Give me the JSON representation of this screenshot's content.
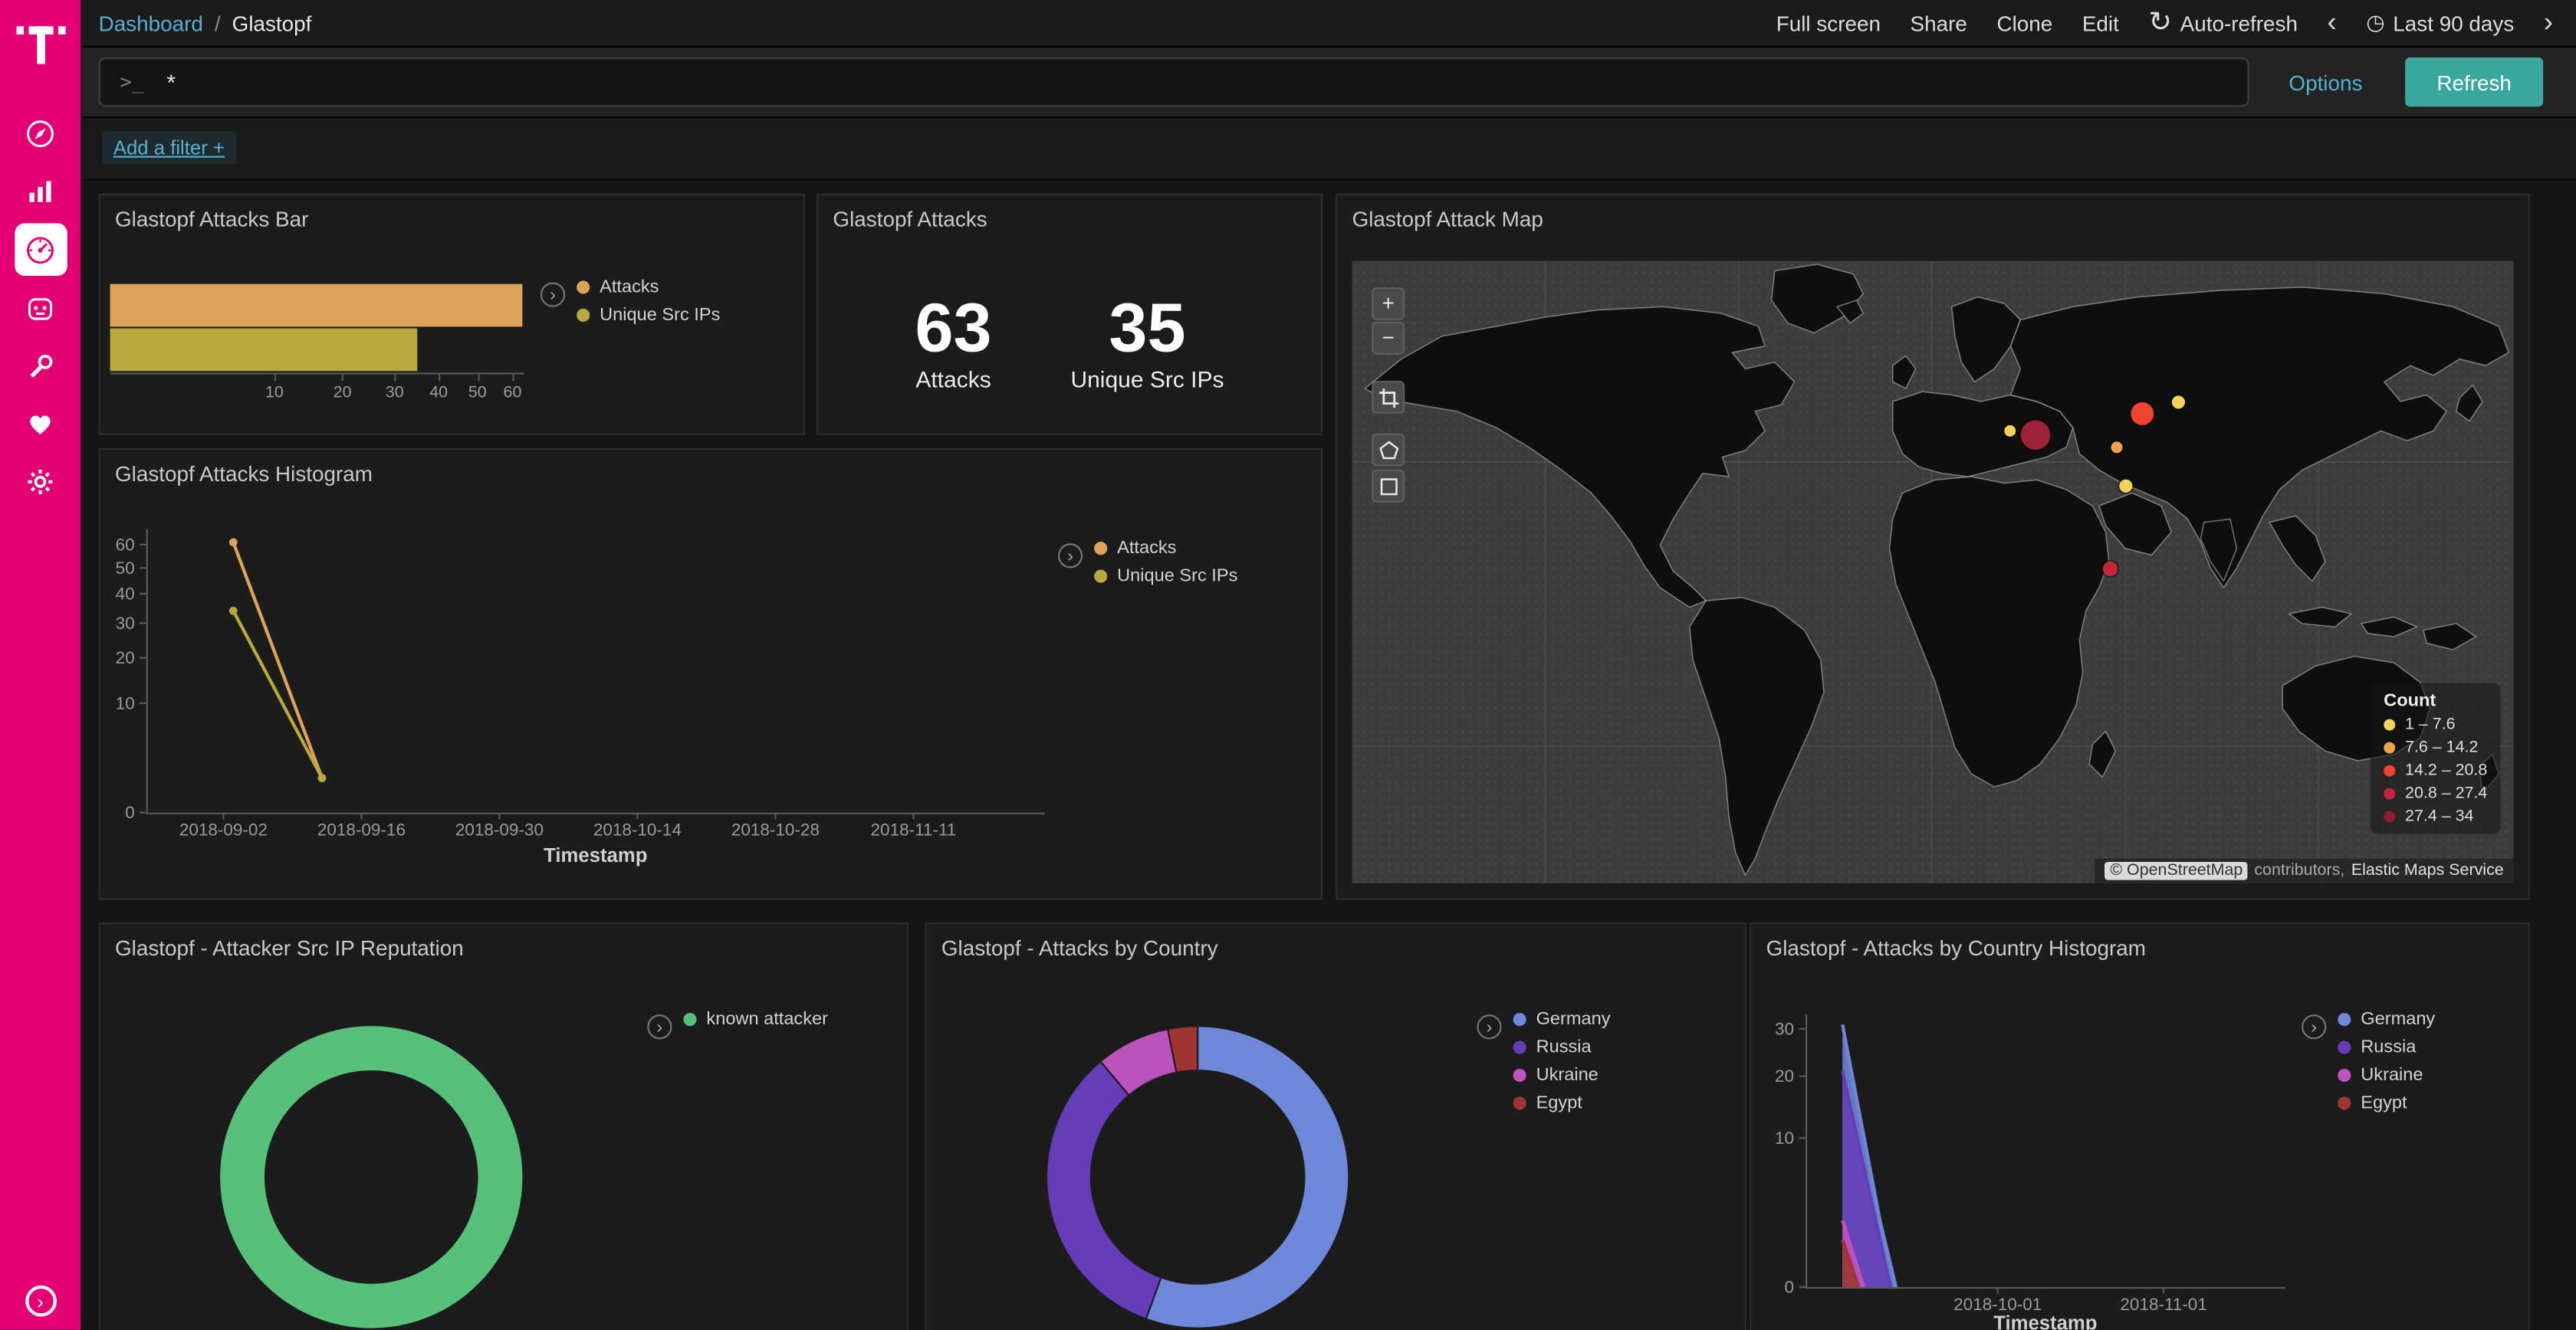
{
  "icons": {
    "auto_refresh": "↻",
    "clock": "◷",
    "prev": "‹",
    "next": "›",
    "legend_toggle": "›",
    "collapse": "›",
    "zoom_in": "+",
    "zoom_out": "−"
  },
  "sidebar": {
    "brand_color": "#e20074",
    "items": [
      {
        "id": "discover",
        "icon": "compass-icon",
        "selected": false
      },
      {
        "id": "visualize",
        "icon": "bar-chart-icon",
        "selected": false
      },
      {
        "id": "dashboard",
        "icon": "gauge-icon",
        "selected": true
      },
      {
        "id": "timelion",
        "icon": "mask-icon",
        "selected": false
      },
      {
        "id": "dev-tools",
        "icon": "wrench-icon",
        "selected": false
      },
      {
        "id": "monitoring",
        "icon": "heart-icon",
        "selected": false
      },
      {
        "id": "management",
        "icon": "gear-icon",
        "selected": false
      }
    ]
  },
  "topnav": {
    "breadcrumb": {
      "parent": "Dashboard",
      "separator": "/",
      "current": "Glastopf"
    },
    "actions": [
      "Full screen",
      "Share",
      "Clone",
      "Edit"
    ],
    "auto_refresh_label": "Auto-refresh",
    "time_range_label": "Last 90 days"
  },
  "querybar": {
    "prompt": ">_",
    "query_value": "*",
    "options_label": "Options",
    "refresh_label": "Refresh"
  },
  "filterbar": {
    "add_filter_label": "Add a filter +"
  },
  "panels": {
    "attacks_bar_title": "Glastopf Attacks Bar",
    "attacks_title": "Glastopf Attacks",
    "map_title": "Glastopf Attack Map",
    "histogram_title": "Glastopf Attacks Histogram",
    "reputation_title": "Glastopf - Attacker Src IP Reputation",
    "country_title": "Glastopf - Attacks by Country",
    "country_histogram_title": "Glastopf - Attacks by Country Histogram"
  },
  "map": {
    "attribution": {
      "osm": "© OpenStreetMap",
      "contributors": "contributors,",
      "ems": "Elastic Maps Service"
    }
  },
  "chart_data": [
    {
      "id": "attacks_bar",
      "type": "bar",
      "orientation": "horizontal",
      "scale": "square-root",
      "axis_max": 63.5,
      "x_ticks": [
        10,
        20,
        30,
        40,
        50,
        60
      ],
      "series": [
        {
          "name": "Attacks",
          "color": "#dda35a",
          "value": 63
        },
        {
          "name": "Unique Src IPs",
          "color": "#b7a93e",
          "value": 35
        }
      ]
    },
    {
      "id": "attacks_metric",
      "type": "metric",
      "metrics": [
        {
          "label": "Attacks",
          "value": "63"
        },
        {
          "label": "Unique Src IPs",
          "value": "35"
        }
      ]
    },
    {
      "id": "attack_map",
      "type": "map",
      "legend_title": "Count",
      "legend_items": [
        {
          "label": "1 – 7.6",
          "color": "#f2d357"
        },
        {
          "label": "7.6 – 14.2",
          "color": "#eda348"
        },
        {
          "label": "14.2 – 20.8",
          "color": "#ef4332"
        },
        {
          "label": "20.8 – 27.4",
          "color": "#c8233c"
        },
        {
          "label": "27.4 – 34",
          "color": "#8e1c30"
        }
      ],
      "points": [
        {
          "x": 400,
          "y": 103,
          "r": 3.5,
          "color": "#f2d357"
        },
        {
          "x": 416,
          "y": 106,
          "r": 9,
          "color": "#9e2235"
        },
        {
          "x": 481,
          "y": 93,
          "r": 7,
          "color": "#ef4332"
        },
        {
          "x": 503,
          "y": 86,
          "r": 4,
          "color": "#f2d357"
        },
        {
          "x": 465,
          "y": 113,
          "r": 3.5,
          "color": "#eda348"
        },
        {
          "x": 471,
          "y": 137,
          "r": 4,
          "color": "#f2d357"
        },
        {
          "x": 461,
          "y": 187,
          "r": 4.5,
          "color": "#c8233c"
        }
      ]
    },
    {
      "id": "attacks_histogram",
      "type": "line",
      "scale_y": "square-root",
      "y_max": 62,
      "y_ticks": [
        0,
        10,
        20,
        30,
        40,
        50,
        60
      ],
      "x_label": "Timestamp",
      "x_ticks": [
        "2018-09-02",
        "2018-09-16",
        "2018-09-30",
        "2018-10-14",
        "2018-10-28",
        "2018-11-11"
      ],
      "series": [
        {
          "name": "Attacks",
          "color": "#dda35a",
          "points": [
            [
              "2018-09-03",
              61
            ],
            [
              "2018-09-12",
              1
            ]
          ]
        },
        {
          "name": "Unique Src IPs",
          "color": "#b7a93e",
          "points": [
            [
              "2018-09-03",
              34
            ],
            [
              "2018-09-12",
              1
            ]
          ]
        }
      ]
    },
    {
      "id": "reputation_pie",
      "type": "pie",
      "donut": true,
      "series": [
        {
          "name": "known attacker",
          "color": "#57c17b",
          "value": 63
        }
      ]
    },
    {
      "id": "country_pie",
      "type": "pie",
      "donut": true,
      "series": [
        {
          "name": "Germany",
          "color": "#6f87d8",
          "value": 35
        },
        {
          "name": "Russia",
          "color": "#663db8",
          "value": 21
        },
        {
          "name": "Ukraine",
          "color": "#bc52bc",
          "value": 5
        },
        {
          "name": "Egypt",
          "color": "#9e3533",
          "value": 2
        }
      ]
    },
    {
      "id": "country_histogram",
      "type": "area",
      "scale_y": "square-root",
      "y_max": 32.2,
      "y_ticks": [
        0,
        10,
        20,
        30
      ],
      "x_label": "Timestamp",
      "x_ticks": [
        "2018-10-01",
        "2018-11-01"
      ],
      "series": [
        {
          "name": "Germany",
          "color": "#6f87d8",
          "points": [
            [
              "2018-09-02",
              31
            ],
            [
              "2018-09-09",
              2
            ],
            [
              "2018-09-12",
              0
            ]
          ]
        },
        {
          "name": "Russia",
          "color": "#663db8",
          "points": [
            [
              "2018-09-02",
              21
            ],
            [
              "2018-09-09",
              1
            ],
            [
              "2018-09-11",
              0
            ]
          ]
        },
        {
          "name": "Ukraine",
          "color": "#bc52bc",
          "points": [
            [
              "2018-09-02",
              2
            ],
            [
              "2018-09-06",
              0
            ]
          ]
        },
        {
          "name": "Egypt",
          "color": "#9e3533",
          "points": [
            [
              "2018-09-02",
              1
            ],
            [
              "2018-09-05",
              0
            ]
          ]
        }
      ]
    }
  ]
}
